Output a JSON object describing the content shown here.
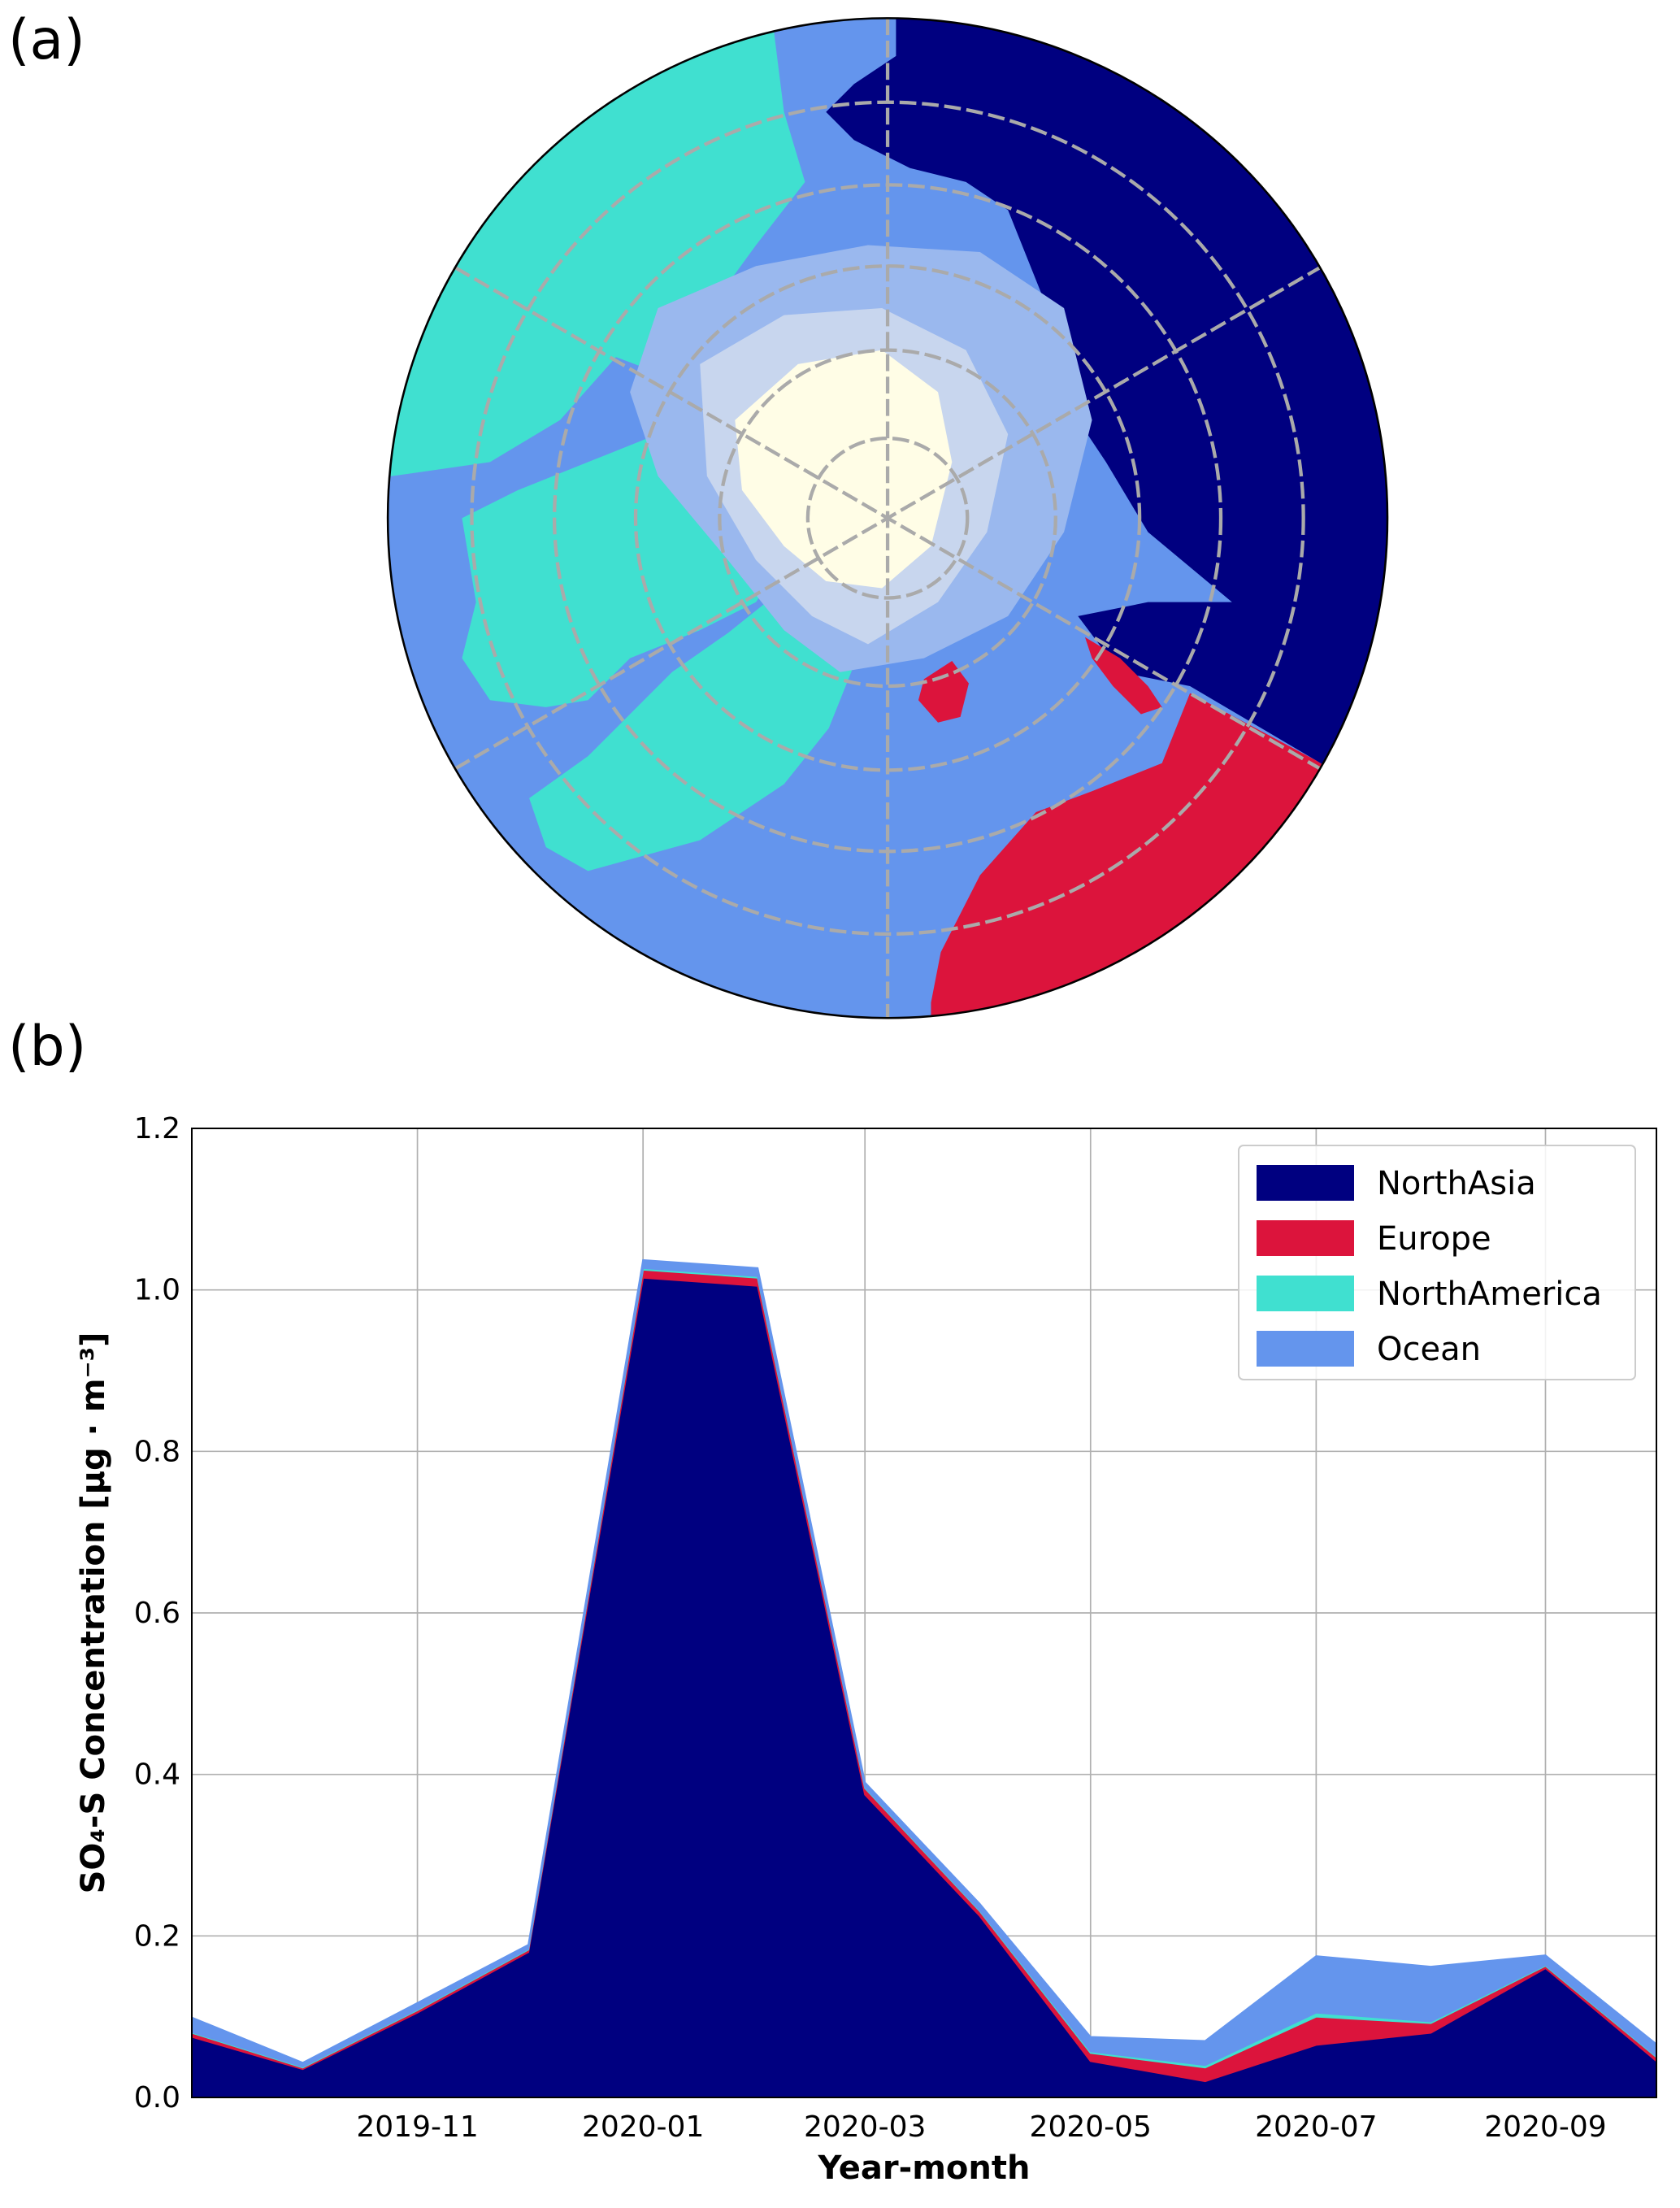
{
  "panel_labels": [
    "(a)",
    "(b)"
  ],
  "chart_data": {
    "type": "stackedarea",
    "xlabel": "Year-month",
    "ylabel": "SO₄-S Concentration [μg · m⁻³]",
    "x": [
      "2019-09",
      "2019-10",
      "2019-11",
      "2019-12",
      "2020-01",
      "2020-02",
      "2020-03",
      "2020-04",
      "2020-05",
      "2020-06",
      "2020-07",
      "2020-08",
      "2020-09",
      "2020-10"
    ],
    "series": [
      {
        "name": "NorthAsia",
        "color": "#000080",
        "values": [
          0.075,
          0.035,
          0.105,
          0.18,
          1.015,
          1.005,
          0.375,
          0.225,
          0.045,
          0.02,
          0.065,
          0.08,
          0.16,
          0.045
        ]
      },
      {
        "name": "Europe",
        "color": "#dc143c",
        "values": [
          0.005,
          0.002,
          0.003,
          0.003,
          0.01,
          0.01,
          0.008,
          0.006,
          0.01,
          0.017,
          0.035,
          0.012,
          0.003,
          0.005
        ]
      },
      {
        "name": "NorthAmerica",
        "color": "#40e0d0",
        "values": [
          0.001,
          0.001,
          0.001,
          0.001,
          0.002,
          0.002,
          0.001,
          0.001,
          0.002,
          0.003,
          0.005,
          0.002,
          0.001,
          0.001
        ]
      },
      {
        "name": "Ocean",
        "color": "#6495ed",
        "values": [
          0.018,
          0.005,
          0.008,
          0.005,
          0.01,
          0.01,
          0.006,
          0.008,
          0.018,
          0.03,
          0.07,
          0.068,
          0.012,
          0.015
        ]
      }
    ],
    "xlim": [
      "2019-09",
      "2020-10"
    ],
    "xticks": [
      "2019-11",
      "2020-01",
      "2020-03",
      "2020-05",
      "2020-07",
      "2020-09"
    ],
    "ylim": [
      0,
      1.2
    ],
    "yticks": [
      {
        "value": 0,
        "label": "0.0"
      },
      0.2,
      0.4,
      0.6,
      0.8,
      {
        "value": 1,
        "label": "1.0"
      },
      1.2
    ],
    "grid": true,
    "legend": "upper right"
  }
}
